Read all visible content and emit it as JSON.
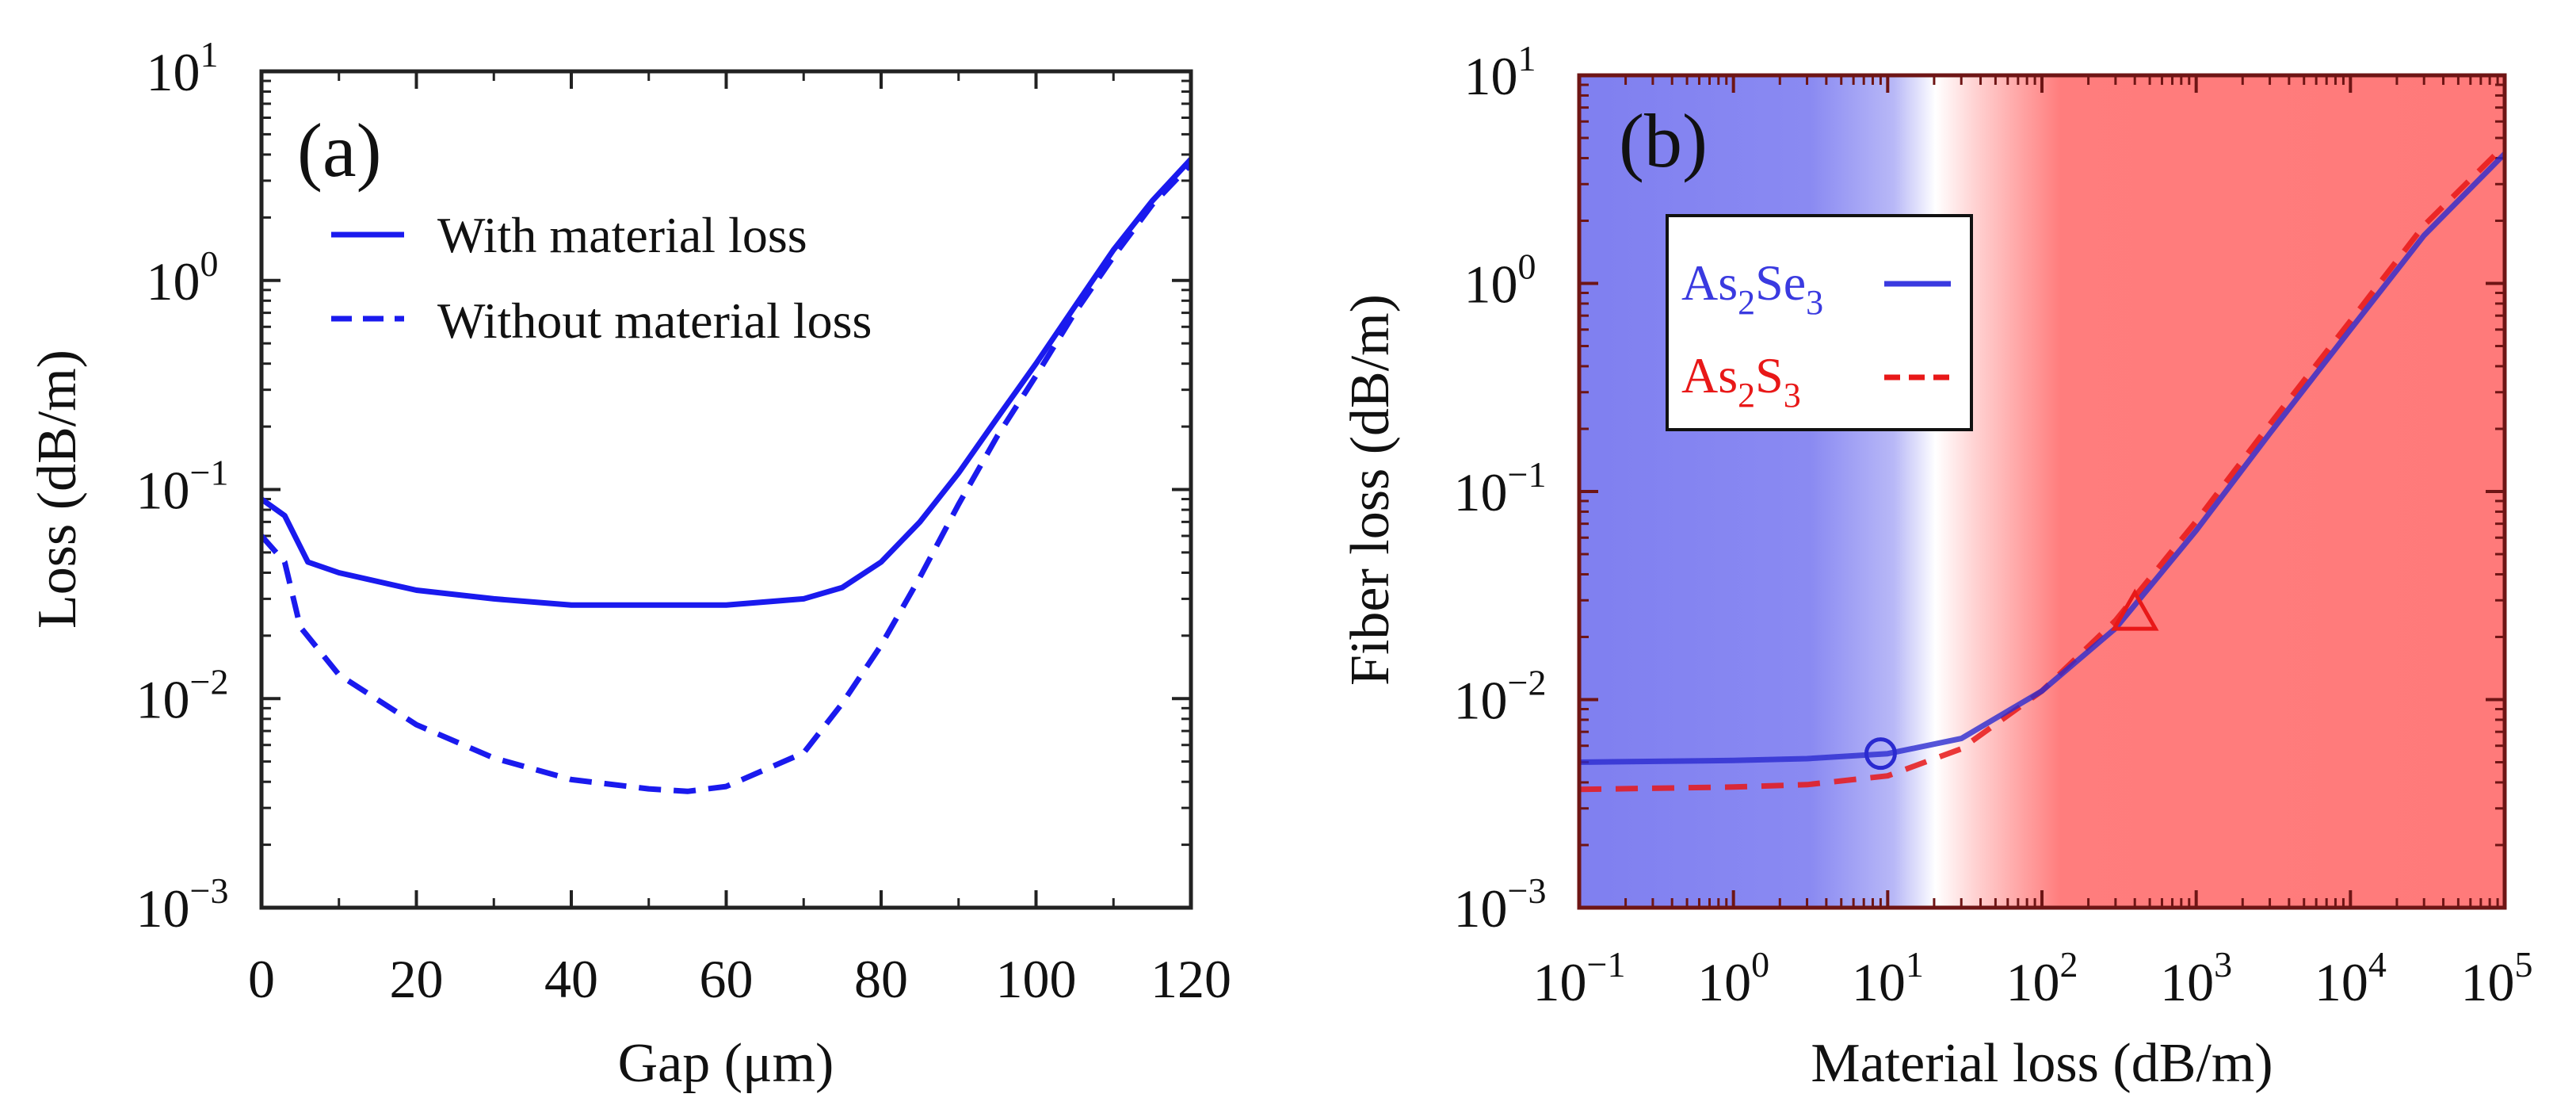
{
  "chart_data": [
    {
      "type": "line",
      "panel_label": "(a)",
      "xlabel": "Gap (μm)",
      "ylabel": "Loss (dB/m)",
      "xlim": [
        0,
        120
      ],
      "ylim_log10": [
        -3,
        1
      ],
      "yscale": "log",
      "x_ticks": [
        "0",
        "20",
        "40",
        "60",
        "80",
        "100",
        "120"
      ],
      "y_ticks": [
        {
          "base": "10",
          "exp": "1"
        },
        {
          "base": "10",
          "exp": "0"
        },
        {
          "base": "10",
          "exp": "−1"
        },
        {
          "base": "10",
          "exp": "−2"
        },
        {
          "base": "10",
          "exp": "−3"
        }
      ],
      "legend": [
        "With material loss",
        "Without material loss"
      ],
      "series": [
        {
          "name": "With material loss",
          "color": "#1a1aee",
          "dash": "solid",
          "x": [
            0,
            3,
            6,
            10,
            20,
            30,
            40,
            50,
            60,
            70,
            75,
            80,
            85,
            90,
            95,
            100,
            105,
            110,
            115,
            120
          ],
          "y": [
            0.09,
            0.075,
            0.045,
            0.04,
            0.033,
            0.03,
            0.028,
            0.028,
            0.028,
            0.03,
            0.034,
            0.045,
            0.07,
            0.12,
            0.22,
            0.4,
            0.75,
            1.4,
            2.4,
            3.8
          ]
        },
        {
          "name": "Without material loss",
          "color": "#1a1aee",
          "dash": "dashed",
          "x": [
            0,
            3,
            5,
            10,
            20,
            30,
            40,
            50,
            55,
            60,
            70,
            75,
            80,
            85,
            90,
            95,
            100,
            105,
            110,
            115,
            120
          ],
          "y": [
            0.06,
            0.045,
            0.022,
            0.013,
            0.0075,
            0.0052,
            0.0041,
            0.0037,
            0.0036,
            0.0038,
            0.0055,
            0.0095,
            0.018,
            0.038,
            0.085,
            0.18,
            0.35,
            0.7,
            1.3,
            2.3,
            3.6
          ]
        }
      ]
    },
    {
      "type": "line",
      "panel_label": "(b)",
      "xlabel": "Material loss (dB/m)",
      "ylabel": "Fiber loss (dB/m)",
      "xscale": "log",
      "yscale": "log",
      "xlim_log10": [
        -1,
        5
      ],
      "ylim_log10": [
        -3,
        1
      ],
      "x_ticks": [
        {
          "base": "10",
          "exp": "−1"
        },
        {
          "base": "10",
          "exp": "0"
        },
        {
          "base": "10",
          "exp": "1"
        },
        {
          "base": "10",
          "exp": "2"
        },
        {
          "base": "10",
          "exp": "3"
        },
        {
          "base": "10",
          "exp": "4"
        },
        {
          "base": "10",
          "exp": "5"
        }
      ],
      "y_ticks": [
        {
          "base": "10",
          "exp": "1"
        },
        {
          "base": "10",
          "exp": "0"
        },
        {
          "base": "10",
          "exp": "−1"
        },
        {
          "base": "10",
          "exp": "−2"
        },
        {
          "base": "10",
          "exp": "−3"
        }
      ],
      "background": {
        "left_color": "#8080f0",
        "right_color": "#ff7a7a",
        "blend_center_dB_per_m": 20
      },
      "legend": [
        {
          "name": "As",
          "sub1": "2",
          "mid": "Se",
          "sub2": "3",
          "color": "#3a3ae0",
          "dash": "solid"
        },
        {
          "name": "As",
          "sub1": "2",
          "mid": "S",
          "sub2": "3",
          "color": "#e81818",
          "dash": "dashed"
        }
      ],
      "series": [
        {
          "name": "As2Se3",
          "color": "#2a2ad0",
          "dash": "solid",
          "x": [
            0.1,
            1,
            3,
            10,
            30,
            100,
            300,
            1000,
            3000,
            10000,
            30000,
            100000
          ],
          "y": [
            0.005,
            0.0051,
            0.0052,
            0.0055,
            0.0065,
            0.011,
            0.022,
            0.065,
            0.19,
            0.6,
            1.7,
            4.2
          ]
        },
        {
          "name": "As2S3",
          "color": "#e81818",
          "dash": "dashed",
          "x": [
            0.1,
            1,
            3,
            10,
            30,
            100,
            300,
            1000,
            3000,
            10000,
            30000,
            100000
          ],
          "y": [
            0.0037,
            0.0038,
            0.0039,
            0.0043,
            0.0058,
            0.011,
            0.024,
            0.072,
            0.21,
            0.66,
            1.9,
            4.6
          ]
        }
      ],
      "markers": [
        {
          "shape": "circle",
          "x": 9,
          "y": 0.0055,
          "color": "#2a2ad0"
        },
        {
          "shape": "triangle",
          "x": 400,
          "y": 0.026,
          "color": "#e81818"
        }
      ]
    }
  ]
}
